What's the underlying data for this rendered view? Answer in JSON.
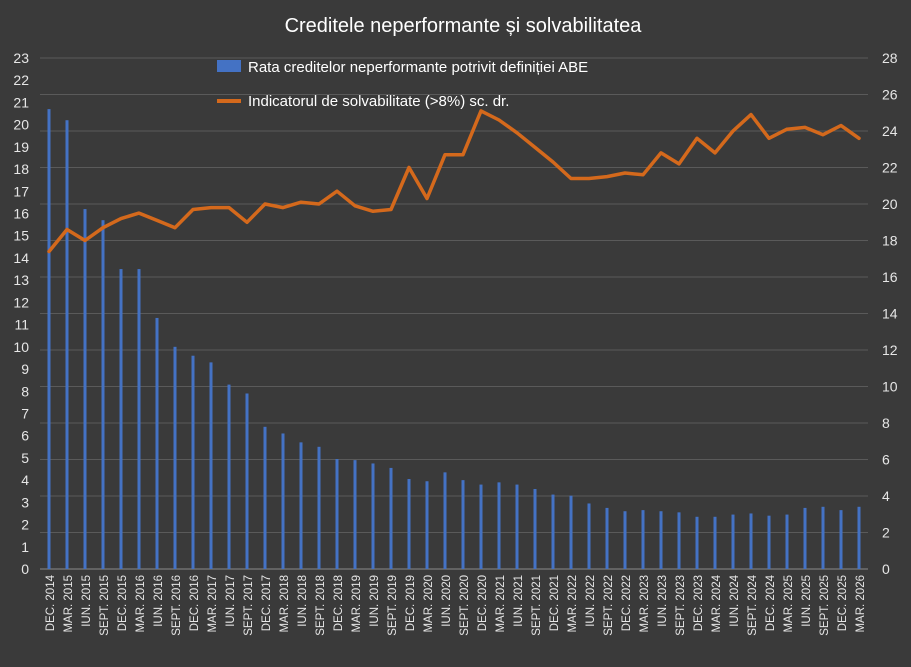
{
  "chart_data": {
    "type": "bar+line",
    "title": "Creditele neperformante și solvabilitatea",
    "categories": [
      "DEC. 2014",
      "MAR. 2015",
      "IUN. 2015",
      "SEPT. 2015",
      "DEC. 2015",
      "MAR. 2016",
      "IUN. 2016",
      "SEPT. 2016",
      "DEC. 2016",
      "MAR. 2017",
      "IUN. 2017",
      "SEPT. 2017",
      "DEC. 2017",
      "MAR. 2018",
      "IUN. 2018",
      "SEPT. 2018",
      "DEC. 2018",
      "MAR. 2019",
      "IUN. 2019",
      "SEPT. 2019",
      "DEC. 2019",
      "MAR. 2020",
      "IUN. 2020",
      "SEPT. 2020",
      "DEC. 2020",
      "MAR. 2021",
      "IUN. 2021",
      "SEPT. 2021",
      "DEC. 2021",
      "MAR. 2022",
      "IUN. 2022",
      "SEPT. 2022",
      "DEC. 2022",
      "MAR. 2023",
      "IUN. 2023",
      "SEPT. 2023",
      "DEC. 2023",
      "MAR. 2024",
      "IUN. 2024",
      "SEPT. 2024",
      "DEC. 2024",
      "MAR. 2025",
      "IUN. 2025",
      "SEPT. 2025",
      "DEC. 2025",
      "MAR. 2026"
    ],
    "series": [
      {
        "name": "Rata creditelor neperformante potrivit definiției ABE",
        "type": "bar",
        "axis": "left",
        "color": "#4472c4",
        "values": [
          20.7,
          20.2,
          16.2,
          15.7,
          13.5,
          13.5,
          11.3,
          10.0,
          9.6,
          9.3,
          8.3,
          7.9,
          6.4,
          6.1,
          5.7,
          5.5,
          4.95,
          4.9,
          4.75,
          4.55,
          4.05,
          3.95,
          4.35,
          4.0,
          3.8,
          3.9,
          3.8,
          3.6,
          3.35,
          3.3,
          2.95,
          2.75,
          2.6,
          2.65,
          2.6,
          2.55,
          2.35,
          2.35,
          2.45,
          2.5,
          2.4,
          2.45,
          2.75,
          2.8,
          2.65,
          2.8
        ]
      },
      {
        "name": "Indicatorul de solvabilitate (>8%) sc. dr.",
        "type": "line",
        "axis": "right",
        "color": "#d4691c",
        "values": [
          17.4,
          18.6,
          18.0,
          18.7,
          19.2,
          19.5,
          19.1,
          18.7,
          19.7,
          19.8,
          19.8,
          19.0,
          20.0,
          19.8,
          20.1,
          20.0,
          20.7,
          19.9,
          19.6,
          19.7,
          22.0,
          20.3,
          22.7,
          22.7,
          25.1,
          24.6,
          23.9,
          23.1,
          22.3,
          21.4,
          21.4,
          21.5,
          21.7,
          21.6,
          22.8,
          22.2,
          23.6,
          22.8,
          24.0,
          24.9,
          23.6,
          24.1,
          24.2,
          23.8,
          24.3,
          23.6
        ]
      }
    ],
    "y_left": {
      "min": 0,
      "max": 23,
      "step": 1
    },
    "y_right": {
      "min": 0,
      "max": 28,
      "step": 2
    },
    "grid": true,
    "legend_position": "top-center"
  }
}
